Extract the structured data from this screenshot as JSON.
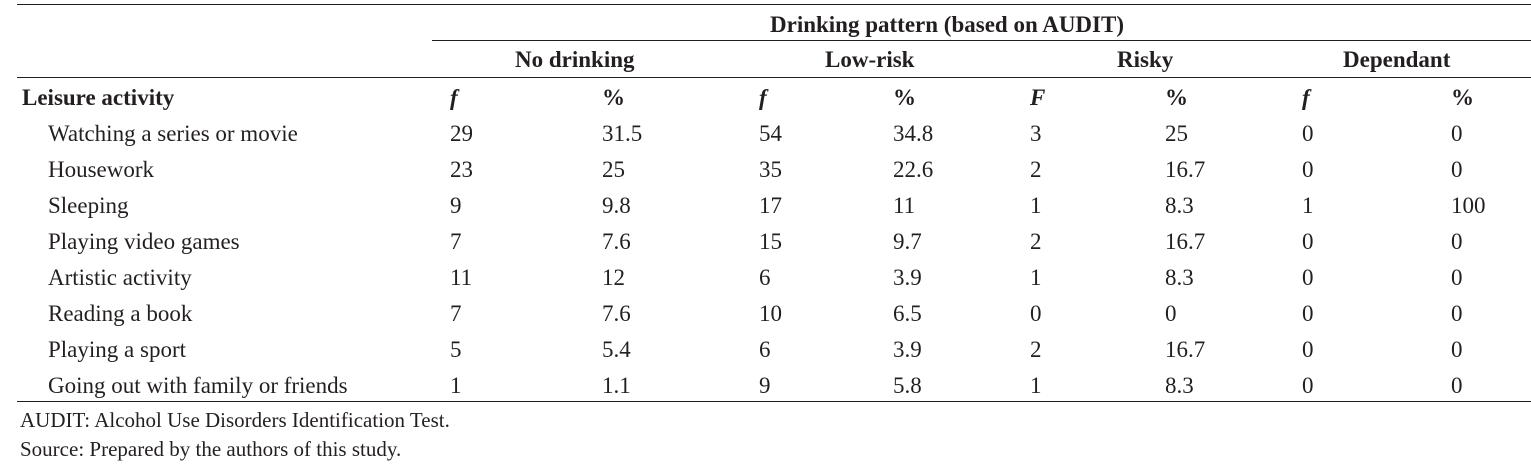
{
  "table": {
    "spanner": "Drinking pattern (based on AUDIT)",
    "groups": [
      "No drinking",
      "Low-risk",
      "Risky",
      "Dependant"
    ],
    "row_header": "Leisure activity",
    "subheaders": [
      "f",
      "%",
      "f",
      "%",
      "F",
      "%",
      "f",
      "%"
    ],
    "rows": [
      {
        "label": "Watching a series or movie",
        "values": [
          "29",
          "31.5",
          "54",
          "34.8",
          "3",
          "25",
          "0",
          "0"
        ]
      },
      {
        "label": "Housework",
        "values": [
          "23",
          "25",
          "35",
          "22.6",
          "2",
          "16.7",
          "0",
          "0"
        ]
      },
      {
        "label": "Sleeping",
        "values": [
          "9",
          "9.8",
          "17",
          "11",
          "1",
          "8.3",
          "1",
          "100"
        ]
      },
      {
        "label": "Playing video games",
        "values": [
          "7",
          "7.6",
          "15",
          "9.7",
          "2",
          "16.7",
          "0",
          "0"
        ]
      },
      {
        "label": "Artistic activity",
        "values": [
          "11",
          "12",
          "6",
          "3.9",
          "1",
          "8.3",
          "0",
          "0"
        ]
      },
      {
        "label": "Reading a book",
        "values": [
          "7",
          "7.6",
          "10",
          "6.5",
          "0",
          "0",
          "0",
          "0"
        ]
      },
      {
        "label": "Playing a sport",
        "values": [
          "5",
          "5.4",
          "6",
          "3.9",
          "2",
          "16.7",
          "0",
          "0"
        ]
      },
      {
        "label": "Going out with family or friends",
        "values": [
          "1",
          "1.1",
          "9",
          "5.8",
          "1",
          "8.3",
          "0",
          "0"
        ]
      }
    ]
  },
  "notes": [
    "AUDIT: Alcohol Use Disorders Identification Test.",
    "Source: Prepared by the authors of this study."
  ]
}
